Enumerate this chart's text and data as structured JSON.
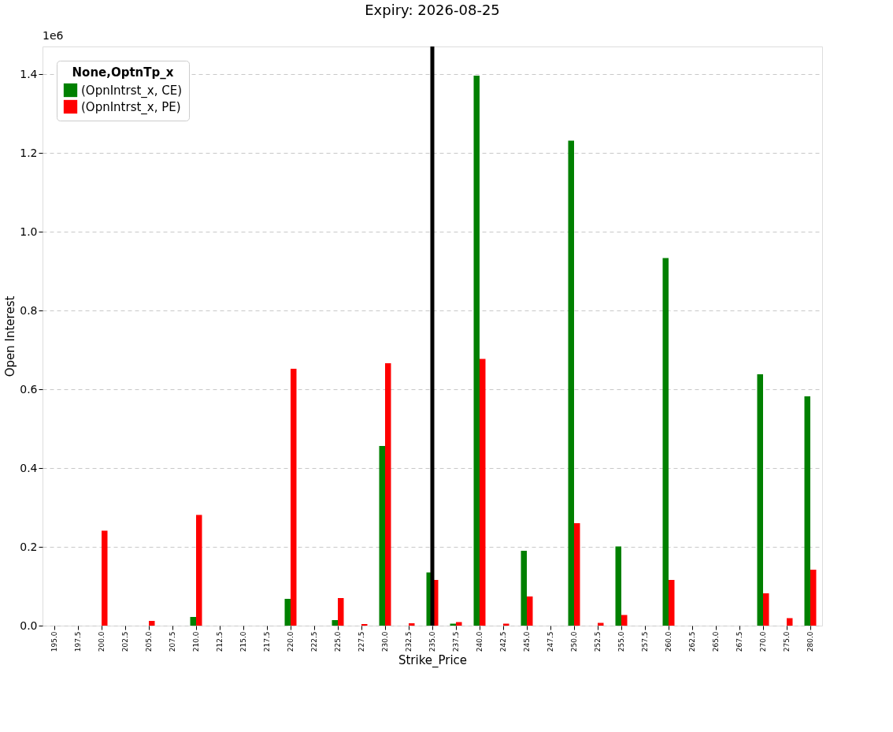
{
  "chart_data": {
    "type": "bar",
    "title": "Expiry: 2026-08-25",
    "xlabel": "Strike_Price",
    "ylabel": "Open Interest",
    "legend_title": "None,OptnTp_x",
    "categories": [
      "195.0",
      "197.5",
      "200.0",
      "202.5",
      "205.0",
      "207.5",
      "210.0",
      "212.5",
      "215.0",
      "217.5",
      "220.0",
      "222.5",
      "225.0",
      "227.5",
      "230.0",
      "232.5",
      "235.0",
      "237.5",
      "240.0",
      "242.5",
      "245.0",
      "247.5",
      "250.0",
      "252.5",
      "255.0",
      "257.5",
      "260.0",
      "262.5",
      "265.0",
      "267.5",
      "270.0",
      "275.0",
      "280.0"
    ],
    "series": [
      {
        "name": "(OpnIntrst_x, CE)",
        "color": "#008000",
        "values": [
          0,
          0,
          0,
          0,
          0,
          0,
          0.022,
          0,
          0,
          0,
          0.068,
          0,
          0.014,
          0,
          0.456,
          0,
          0.135,
          0.005,
          1.396,
          0,
          0.19,
          0,
          1.231,
          0,
          0.201,
          0,
          0.933,
          0,
          0,
          0,
          0.638,
          0,
          0.582
        ]
      },
      {
        "name": "(OpnIntrst_x, PE)",
        "color": "#ff0000",
        "values": [
          0,
          0,
          0.241,
          0,
          0.012,
          0,
          0.281,
          0,
          0,
          0,
          0.652,
          0,
          0.07,
          0.004,
          0.666,
          0.006,
          0.116,
          0.009,
          0.677,
          0.005,
          0.074,
          0,
          0.26,
          0.007,
          0.027,
          0,
          0.116,
          0,
          0,
          0,
          0.082,
          0.019,
          0.142
        ]
      }
    ],
    "ylim": [
      0,
      1.47
    ],
    "yticks": [
      {
        "value": 0,
        "label": "0.0"
      },
      0.2,
      0.4,
      0.6,
      0.8,
      {
        "value": 1,
        "label": "1.0"
      },
      1.2,
      1.4
    ],
    "ref_lines": [
      {
        "axis": "x",
        "value": "235.0",
        "color": "#000000"
      }
    ],
    "annotations": [
      "1e6"
    ],
    "grid": "y",
    "legend": "top left"
  }
}
